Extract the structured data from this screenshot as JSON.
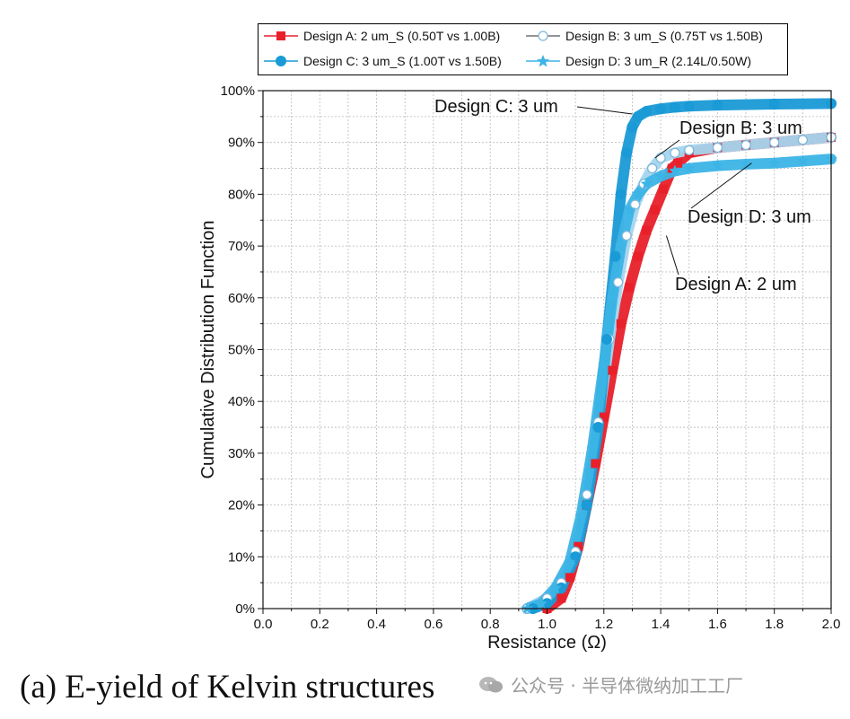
{
  "chart_data": {
    "type": "line",
    "title": "",
    "xlabel": "Resistance (Ω)",
    "ylabel": "Cumulative Distribution Function",
    "xlim": [
      0.0,
      2.0
    ],
    "ylim": [
      0,
      100
    ],
    "x_ticks": [
      "0.0",
      "0.2",
      "0.4",
      "0.6",
      "0.8",
      "1.0",
      "1.2",
      "1.4",
      "1.6",
      "1.8",
      "2.0"
    ],
    "y_ticks": [
      "0%",
      "10%",
      "20%",
      "30%",
      "40%",
      "50%",
      "60%",
      "70%",
      "80%",
      "90%",
      "100%"
    ],
    "grid": true,
    "legend_position": "top",
    "series": [
      {
        "name": "Design A: 2 um_S (0.50T vs 1.00B)",
        "color": "#e8202a",
        "marker": "square",
        "x": [
          1.0,
          1.05,
          1.08,
          1.11,
          1.14,
          1.17,
          1.2,
          1.23,
          1.26,
          1.29,
          1.32,
          1.35,
          1.38,
          1.41,
          1.44,
          1.46,
          1.5,
          1.6,
          1.7,
          1.8,
          2.0
        ],
        "y": [
          0,
          2,
          6,
          12,
          20,
          28,
          37,
          46,
          55,
          62,
          68,
          73,
          77,
          81,
          85,
          86,
          88,
          89,
          89.5,
          90,
          91
        ]
      },
      {
        "name": "Design B: 3 um_S (0.75T vs 1.50B)",
        "color": "#a5d5ef",
        "marker": "circle-open",
        "x": [
          0.93,
          1.0,
          1.05,
          1.1,
          1.14,
          1.18,
          1.22,
          1.25,
          1.28,
          1.31,
          1.34,
          1.37,
          1.4,
          1.45,
          1.5,
          1.6,
          1.7,
          1.8,
          1.9,
          2.0
        ],
        "y": [
          0,
          2,
          5,
          11,
          22,
          36,
          52,
          63,
          72,
          78,
          82,
          85,
          87,
          88,
          88.5,
          89,
          89.5,
          90,
          90.5,
          91
        ]
      },
      {
        "name": "Design C: 3 um_S (1.00T vs 1.50B)",
        "color": "#1a9ad6",
        "marker": "circle-filled",
        "x": [
          0.95,
          1.0,
          1.05,
          1.1,
          1.14,
          1.18,
          1.21,
          1.24,
          1.26,
          1.28,
          1.3,
          1.32,
          1.35,
          1.4,
          1.45,
          1.5,
          1.6,
          1.8,
          2.0
        ],
        "y": [
          0,
          1,
          4,
          10,
          20,
          35,
          52,
          68,
          80,
          88,
          93,
          95,
          96,
          96.5,
          96.8,
          97,
          97.2,
          97.4,
          97.5
        ]
      },
      {
        "name": "Design D: 3 um_R (2.14L/0.50W)",
        "color": "#3cb4e6",
        "marker": "star",
        "x": [
          0.93,
          0.98,
          1.03,
          1.08,
          1.12,
          1.16,
          1.2,
          1.23,
          1.26,
          1.29,
          1.32,
          1.35,
          1.4,
          1.45,
          1.5,
          1.6,
          1.7,
          1.8,
          1.9,
          2.0
        ],
        "y": [
          0,
          1,
          4,
          9,
          18,
          31,
          47,
          60,
          70,
          77,
          80,
          82,
          83.5,
          84.5,
          85,
          85.5,
          85.8,
          86,
          86.4,
          86.8
        ]
      }
    ],
    "annotations": [
      {
        "id": "C",
        "text": "Design C: 3 um",
        "point": [
          1.3,
          95.5
        ]
      },
      {
        "id": "B",
        "text": "Design B: 3 um",
        "point": [
          1.38,
          87
        ]
      },
      {
        "id": "D",
        "text": "Design D: 3 um",
        "point": [
          1.72,
          86
        ]
      },
      {
        "id": "A",
        "text": "Design A: 2 um",
        "point": [
          1.42,
          72
        ]
      }
    ]
  },
  "caption": "(a) E-yield of Kelvin structures",
  "watermark": "公众号 · 半导体微纳加工工厂"
}
